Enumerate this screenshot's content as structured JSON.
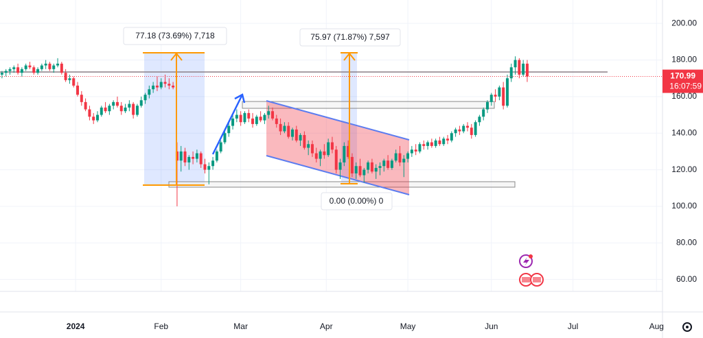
{
  "chart_data": {
    "type": "candlestick",
    "up_color": "#089981",
    "down_color": "#f23645",
    "xlim": [
      -0.5,
      166
    ],
    "ylim": [
      53.5,
      212.8
    ],
    "xticks": [
      {
        "value": 18.5,
        "label": "2024"
      },
      {
        "value": 40,
        "label": "Feb"
      },
      {
        "value": 60,
        "label": "Mar"
      },
      {
        "value": 81.5,
        "label": "Apr"
      },
      {
        "value": 102,
        "label": "May"
      },
      {
        "value": 123,
        "label": "Jun"
      },
      {
        "value": 143.5,
        "label": "Jul"
      },
      {
        "value": 164.5,
        "label": "Aug"
      }
    ],
    "yticks": [
      {
        "value": 200,
        "label": "200.00"
      },
      {
        "value": 180,
        "label": "180.00"
      },
      {
        "value": 160,
        "label": "160.00"
      },
      {
        "value": 140,
        "label": "140.00"
      },
      {
        "value": 120,
        "label": "120.00"
      },
      {
        "value": 100,
        "label": "100.00"
      },
      {
        "value": 80,
        "label": "80.00"
      },
      {
        "value": 60,
        "label": "60.00"
      }
    ],
    "grid": true,
    "last_price": 170.99,
    "countdown": "16:07:59",
    "annotations": [
      "77.18 (73.69%) 7,718",
      "75.97 (71.87%) 7,597",
      "0.00 (0.00%) 0"
    ],
    "candles": [
      [
        172,
        174,
        170,
        173
      ],
      [
        173,
        175,
        171,
        174
      ],
      [
        174,
        176,
        172,
        175
      ],
      [
        175,
        177,
        173,
        176
      ],
      [
        176,
        178,
        172,
        173
      ],
      [
        173,
        176,
        171,
        175
      ],
      [
        175,
        178,
        174,
        177
      ],
      [
        177,
        179,
        175,
        176
      ],
      [
        176,
        177,
        172,
        173
      ],
      [
        173,
        176,
        172,
        175
      ],
      [
        175,
        178,
        174,
        177
      ],
      [
        177,
        180,
        175,
        178
      ],
      [
        178,
        179,
        174,
        175
      ],
      [
        175,
        178,
        173,
        177
      ],
      [
        177,
        181,
        176,
        178
      ],
      [
        178,
        179,
        172,
        173
      ],
      [
        173,
        175,
        168,
        169
      ],
      [
        169,
        172,
        167,
        170
      ],
      [
        170,
        171,
        165,
        166
      ],
      [
        166,
        168,
        160,
        161
      ],
      [
        161,
        163,
        155,
        157
      ],
      [
        157,
        159,
        152,
        153
      ],
      [
        153,
        155,
        147,
        149
      ],
      [
        149,
        151,
        145,
        147
      ],
      [
        147,
        152,
        146,
        150
      ],
      [
        150,
        155,
        149,
        154
      ],
      [
        154,
        157,
        151,
        152
      ],
      [
        152,
        156,
        150,
        155
      ],
      [
        155,
        158,
        153,
        157
      ],
      [
        157,
        160,
        154,
        155
      ],
      [
        155,
        157,
        150,
        152
      ],
      [
        152,
        156,
        151,
        154
      ],
      [
        154,
        158,
        152,
        156
      ],
      [
        156,
        157,
        148,
        150
      ],
      [
        150,
        156,
        149,
        155
      ],
      [
        155,
        160,
        154,
        158
      ],
      [
        158,
        162,
        156,
        161
      ],
      [
        161,
        166,
        159,
        164
      ],
      [
        164,
        168,
        162,
        166
      ],
      [
        166,
        171,
        163,
        165
      ],
      [
        165,
        170,
        164,
        168
      ],
      [
        168,
        172,
        165,
        167
      ],
      [
        167,
        170,
        164,
        166
      ],
      [
        166,
        168,
        164,
        165
      ],
      [
        130,
        135,
        100,
        125
      ],
      [
        125,
        133,
        119,
        130
      ],
      [
        130,
        132,
        122,
        124
      ],
      [
        124,
        128,
        120,
        127
      ],
      [
        127,
        130,
        123,
        126
      ],
      [
        126,
        131,
        124,
        129
      ],
      [
        129,
        130,
        121,
        123
      ],
      [
        123,
        126,
        118,
        120
      ],
      [
        120,
        124,
        112,
        122
      ],
      [
        122,
        127,
        120,
        125
      ],
      [
        125,
        131,
        124,
        130
      ],
      [
        130,
        136,
        129,
        135
      ],
      [
        135,
        141,
        134,
        140
      ],
      [
        140,
        146,
        138,
        144
      ],
      [
        144,
        150,
        142,
        148
      ],
      [
        148,
        153,
        146,
        150
      ],
      [
        150,
        152,
        144,
        146
      ],
      [
        146,
        152,
        145,
        151
      ],
      [
        151,
        153,
        146,
        148
      ],
      [
        148,
        151,
        143,
        145
      ],
      [
        145,
        150,
        144,
        149
      ],
      [
        149,
        152,
        146,
        147
      ],
      [
        147,
        151,
        145,
        150
      ],
      [
        150,
        155,
        148,
        152
      ],
      [
        152,
        154,
        147,
        148
      ],
      [
        148,
        150,
        143,
        145
      ],
      [
        145,
        148,
        139,
        141
      ],
      [
        141,
        146,
        140,
        144
      ],
      [
        144,
        146,
        137,
        138
      ],
      [
        138,
        143,
        136,
        142
      ],
      [
        142,
        144,
        135,
        136
      ],
      [
        136,
        140,
        133,
        139
      ],
      [
        139,
        141,
        131,
        132
      ],
      [
        132,
        136,
        128,
        134
      ],
      [
        134,
        136,
        127,
        129
      ],
      [
        129,
        132,
        124,
        126
      ],
      [
        126,
        131,
        122,
        130
      ],
      [
        130,
        134,
        126,
        128
      ],
      [
        128,
        137,
        127,
        135
      ],
      [
        135,
        138,
        129,
        131
      ],
      [
        131,
        133,
        118,
        120
      ],
      [
        120,
        126,
        115,
        124
      ],
      [
        124,
        135,
        122,
        133
      ],
      [
        133,
        136,
        126,
        127
      ],
      [
        127,
        129,
        116,
        118
      ],
      [
        118,
        124,
        115,
        122
      ],
      [
        122,
        126,
        116,
        117
      ],
      [
        117,
        121,
        113,
        120
      ],
      [
        120,
        125,
        118,
        124
      ],
      [
        124,
        126,
        118,
        119
      ],
      [
        119,
        123,
        115,
        121
      ],
      [
        121,
        124,
        117,
        122
      ],
      [
        122,
        126,
        119,
        125
      ],
      [
        125,
        128,
        120,
        121
      ],
      [
        121,
        126,
        120,
        125
      ],
      [
        125,
        131,
        124,
        129
      ],
      [
        129,
        133,
        122,
        124
      ],
      [
        124,
        128,
        116,
        126
      ],
      [
        126,
        130,
        124,
        129
      ],
      [
        129,
        133,
        127,
        131
      ],
      [
        131,
        134,
        128,
        130
      ],
      [
        130,
        135,
        129,
        134
      ],
      [
        134,
        136,
        131,
        133
      ],
      [
        133,
        136,
        131,
        135
      ],
      [
        135,
        137,
        132,
        133
      ],
      [
        133,
        137,
        132,
        136
      ],
      [
        136,
        138,
        133,
        134
      ],
      [
        134,
        138,
        133,
        137
      ],
      [
        137,
        139,
        134,
        136
      ],
      [
        136,
        141,
        135,
        140
      ],
      [
        140,
        143,
        138,
        142
      ],
      [
        142,
        144,
        139,
        141
      ],
      [
        141,
        145,
        140,
        144
      ],
      [
        144,
        146,
        141,
        143
      ],
      [
        143,
        145,
        137,
        139
      ],
      [
        139,
        147,
        138,
        146
      ],
      [
        146,
        150,
        144,
        149
      ],
      [
        149,
        154,
        147,
        153
      ],
      [
        153,
        158,
        151,
        157
      ],
      [
        157,
        162,
        155,
        161
      ],
      [
        161,
        164,
        157,
        160
      ],
      [
        160,
        166,
        158,
        165
      ],
      [
        165,
        168,
        153,
        155
      ],
      [
        155,
        172,
        154,
        170
      ],
      [
        170,
        178,
        168,
        176
      ],
      [
        176,
        182,
        172,
        180
      ],
      [
        180,
        181,
        170,
        172
      ],
      [
        172,
        180,
        171,
        178
      ],
      [
        178,
        180,
        168,
        170.99
      ]
    ]
  }
}
